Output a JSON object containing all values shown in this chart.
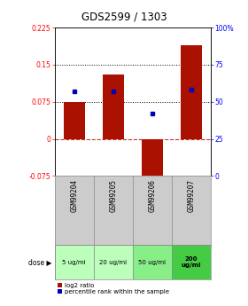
{
  "title": "GDS2599 / 1303",
  "samples": [
    "GSM99204",
    "GSM99205",
    "GSM99206",
    "GSM99207"
  ],
  "doses": [
    "5 ug/ml",
    "20 ug/ml",
    "50 ug/ml",
    "200\nug/ml"
  ],
  "dose_colors": [
    "#bbffbb",
    "#bbffbb",
    "#88ee88",
    "#44cc44"
  ],
  "log2_values": [
    0.075,
    0.13,
    -0.085,
    0.19
  ],
  "percentile_values": [
    57,
    57,
    42,
    58
  ],
  "ylim_left": [
    -0.075,
    0.225
  ],
  "ylim_right": [
    0,
    100
  ],
  "left_ticks": [
    -0.075,
    0,
    0.075,
    0.15,
    0.225
  ],
  "right_ticks": [
    0,
    25,
    50,
    75,
    100
  ],
  "right_tick_labels": [
    "0",
    "25",
    "50",
    "75",
    "100%"
  ],
  "hlines": [
    0.075,
    0.15
  ],
  "bar_color": "#aa1100",
  "dot_color": "#0000bb",
  "zero_line_color": "#cc3333",
  "grid_color": "#000000",
  "bg_color": "#ffffff",
  "sample_bg": "#cccccc"
}
